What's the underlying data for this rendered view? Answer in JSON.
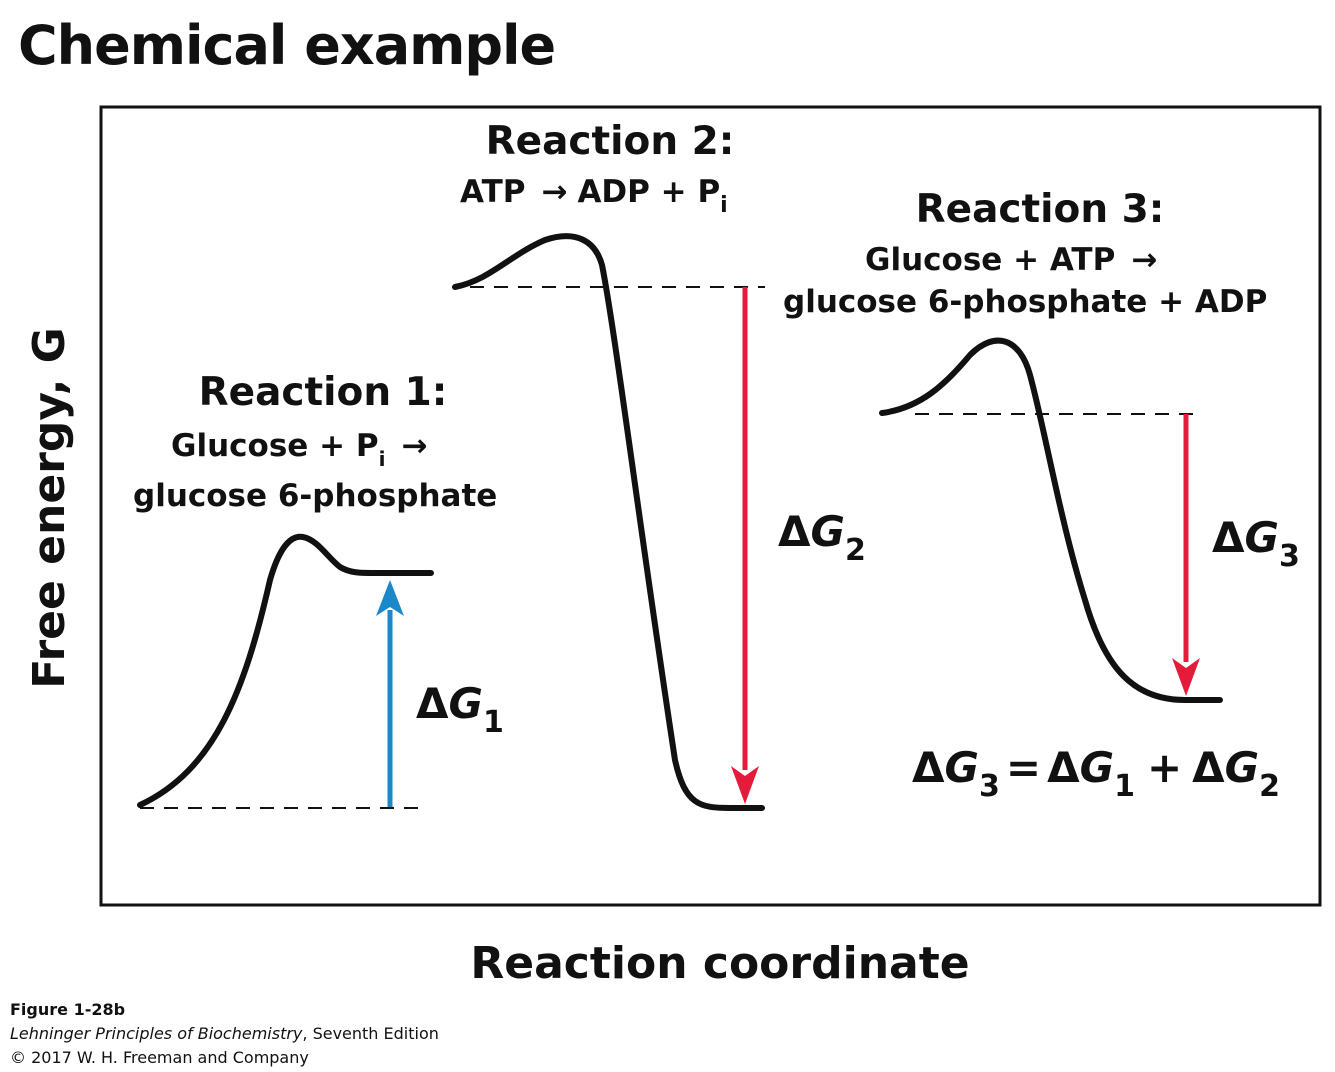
{
  "title": "Chemical example",
  "y_axis_label": "Free energy, G",
  "x_axis_label": "Reaction coordinate",
  "colors": {
    "stroke": "#111111",
    "up_arrow": "#1a88c9",
    "down_arrow": "#e41b3a",
    "frame": "#111111"
  },
  "reactions": [
    {
      "heading": "Reaction 1:",
      "line1": {
        "a": "Glucose + P",
        "sub": "i",
        "arrow": "→"
      },
      "line2": "glucose 6-phosphate",
      "delta": {
        "symbol": "Δ",
        "var": "G",
        "sub": "1"
      },
      "direction": "up"
    },
    {
      "heading": "Reaction 2:",
      "line1": {
        "a": "ATP",
        "arrow": "→",
        "b": "ADP + P",
        "sub": "i"
      },
      "delta": {
        "symbol": "Δ",
        "var": "G",
        "sub": "2"
      },
      "direction": "down"
    },
    {
      "heading": "Reaction 3:",
      "line1": {
        "a": "Glucose + ATP",
        "arrow": "→"
      },
      "line2": "glucose 6-phosphate + ADP",
      "delta": {
        "symbol": "Δ",
        "var": "G",
        "sub": "3"
      },
      "direction": "down"
    }
  ],
  "equation": {
    "lhs": {
      "symbol": "Δ",
      "var": "G",
      "sub": "3"
    },
    "eq": "=",
    "t1": {
      "symbol": "Δ",
      "var": "G",
      "sub": "1"
    },
    "plus": "+",
    "t2": {
      "symbol": "Δ",
      "var": "G",
      "sub": "2"
    }
  },
  "caption": {
    "figure": "Figure 1-28b",
    "book_title": "Lehninger Principles of Biochemistry",
    "book_rest": ", Seventh Edition",
    "copyright": "© 2017 W. H. Freeman and Company"
  }
}
